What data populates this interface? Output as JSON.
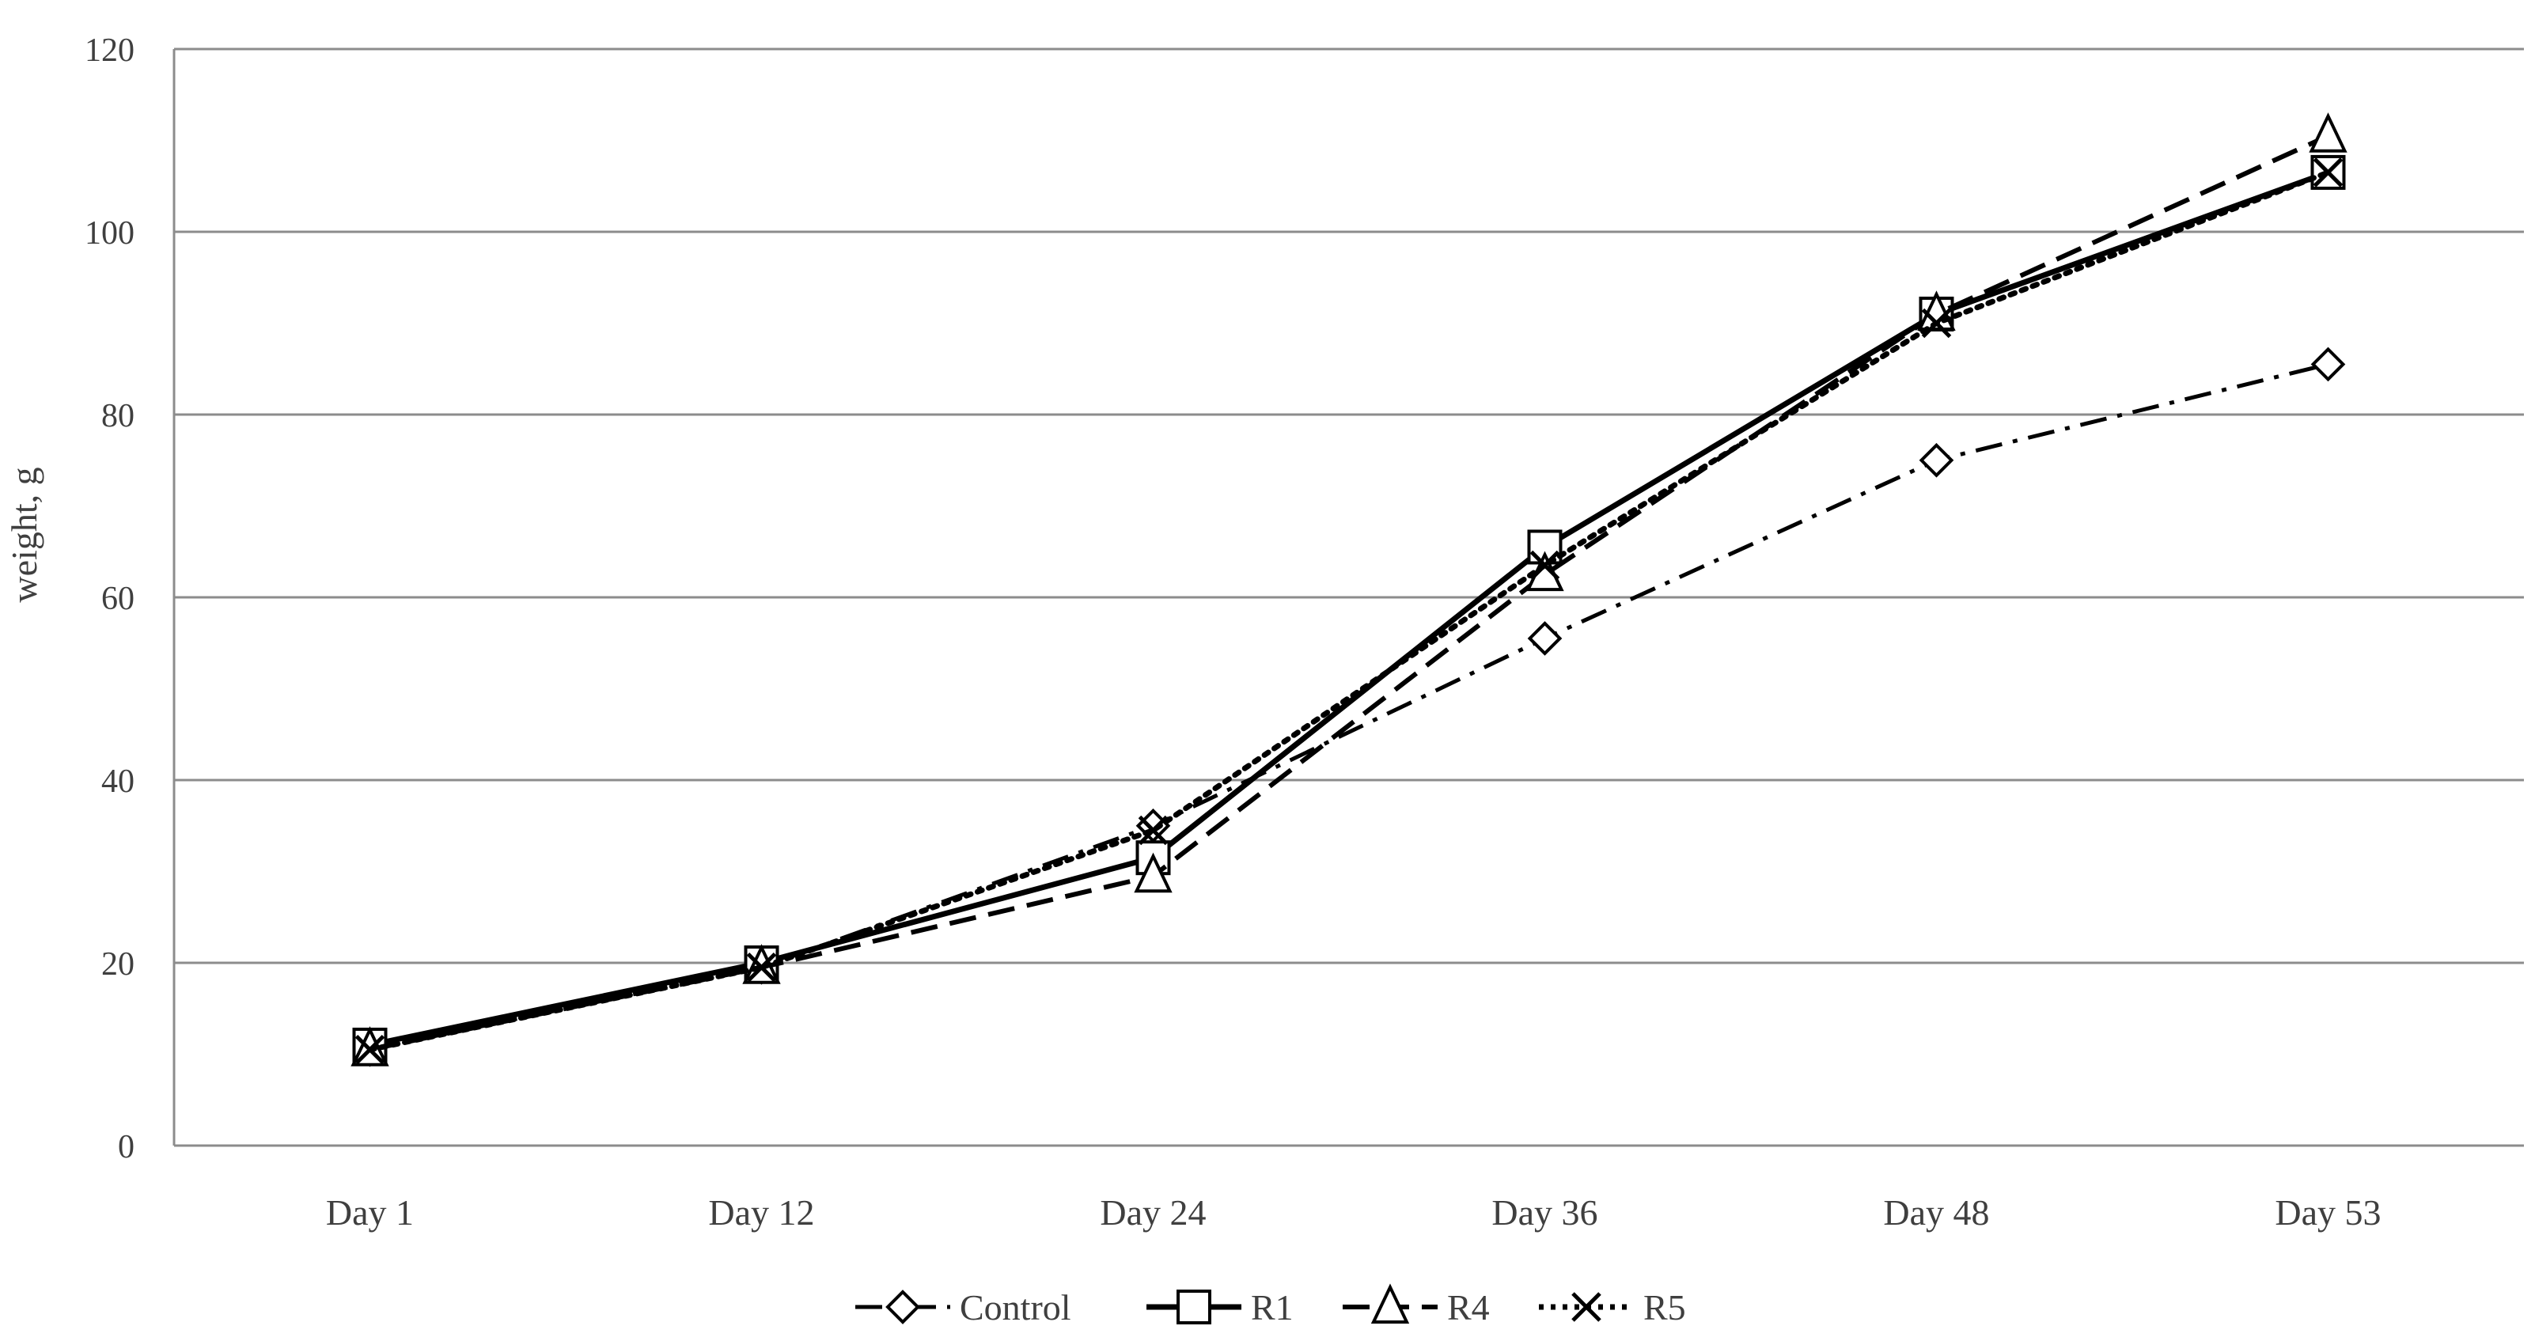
{
  "chart_data": {
    "type": "line",
    "title": "",
    "xlabel": "",
    "ylabel": "weight, g",
    "categories": [
      "Day 1",
      "Day 12",
      "Day 24",
      "Day 36",
      "Day 48",
      "Day 53"
    ],
    "ylim": [
      0,
      120
    ],
    "yticks": [
      0,
      20,
      40,
      60,
      80,
      100,
      120
    ],
    "grid": "horizontal",
    "legend_position": "bottom",
    "series": [
      {
        "name": "Control",
        "values": [
          10.5,
          19.5,
          35,
          55.5,
          75,
          85.5
        ],
        "marker": "diamond",
        "dash": "dash-dot"
      },
      {
        "name": "R1",
        "values": [
          11,
          20,
          31.5,
          65.5,
          91,
          106.5
        ],
        "marker": "square",
        "dash": "solid"
      },
      {
        "name": "R4",
        "values": [
          10.5,
          19.5,
          29.5,
          62.5,
          91,
          110.5
        ],
        "marker": "triangle",
        "dash": "dashed"
      },
      {
        "name": "R5",
        "values": [
          10.5,
          19.5,
          34.5,
          63.5,
          90,
          106.5
        ],
        "marker": "x",
        "dash": "dotted"
      }
    ],
    "colors": {
      "lines": "#000000",
      "grid": "#8c8c8c",
      "text": "#3f3f3f"
    }
  }
}
